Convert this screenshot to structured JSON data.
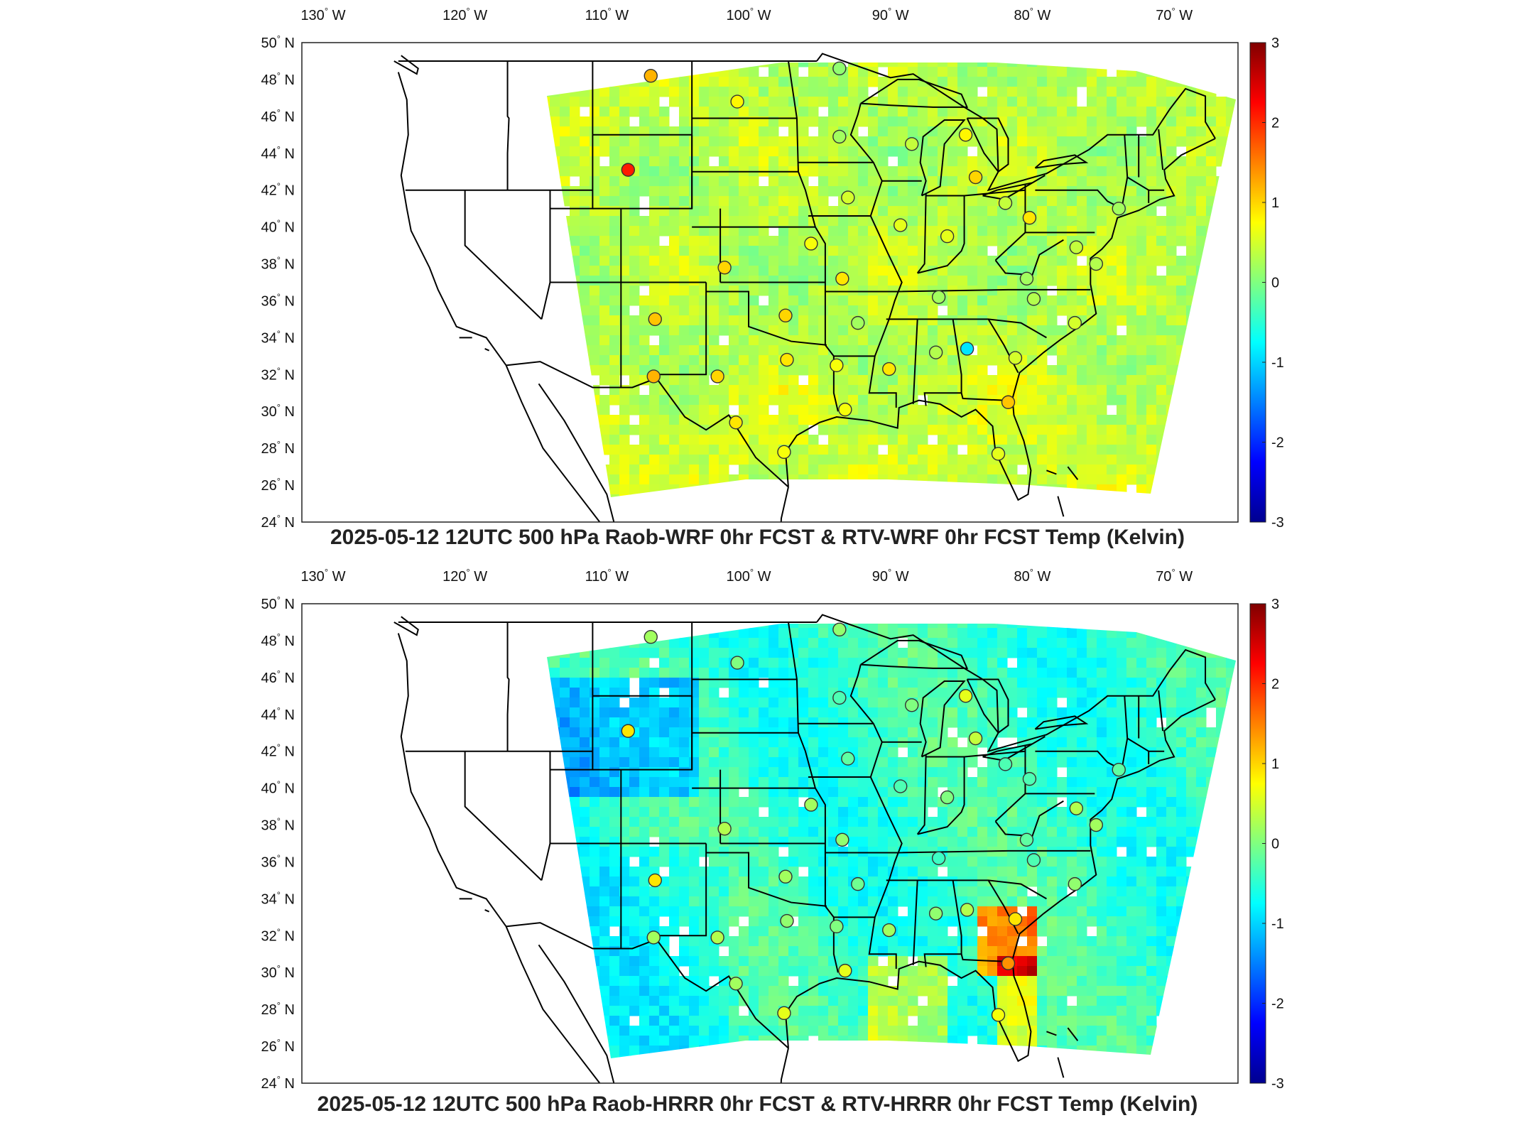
{
  "panels": [
    {
      "title": "2025-05-12 12UTC 500 hPa Raob-WRF 0hr FCST & RTV-WRF 0hr FCST Temp (Kelvin)",
      "stations": [
        {
          "lon": -106.9,
          "lat": 48.2,
          "v": 1.2
        },
        {
          "lon": -100.8,
          "lat": 46.8,
          "v": 0.8
        },
        {
          "lon": -93.6,
          "lat": 48.6,
          "v": 0.1
        },
        {
          "lon": -93.6,
          "lat": 44.9,
          "v": 0.2
        },
        {
          "lon": -84.7,
          "lat": 45.0,
          "v": 0.8
        },
        {
          "lon": -88.5,
          "lat": 44.5,
          "v": 0.4
        },
        {
          "lon": -108.5,
          "lat": 43.1,
          "v": 2.1
        },
        {
          "lon": -84.0,
          "lat": 42.7,
          "v": 1.0
        },
        {
          "lon": -93.0,
          "lat": 41.6,
          "v": 0.5
        },
        {
          "lon": -81.9,
          "lat": 41.3,
          "v": 0.4
        },
        {
          "lon": -73.9,
          "lat": 41.0,
          "v": 0.2
        },
        {
          "lon": -89.3,
          "lat": 40.1,
          "v": 0.6
        },
        {
          "lon": -80.2,
          "lat": 40.5,
          "v": 0.9
        },
        {
          "lon": -86.0,
          "lat": 39.5,
          "v": 0.6
        },
        {
          "lon": -95.6,
          "lat": 39.1,
          "v": 0.7
        },
        {
          "lon": -101.7,
          "lat": 37.8,
          "v": 1.0
        },
        {
          "lon": -76.9,
          "lat": 38.9,
          "v": 0.4
        },
        {
          "lon": -75.5,
          "lat": 38.0,
          "v": 0.3
        },
        {
          "lon": -93.4,
          "lat": 37.2,
          "v": 0.9
        },
        {
          "lon": -80.4,
          "lat": 37.2,
          "v": 0.2
        },
        {
          "lon": -86.6,
          "lat": 36.2,
          "v": 0.2
        },
        {
          "lon": -79.9,
          "lat": 36.1,
          "v": 0.3
        },
        {
          "lon": -106.6,
          "lat": 35.0,
          "v": 1.1
        },
        {
          "lon": -97.4,
          "lat": 35.2,
          "v": 1.0
        },
        {
          "lon": -92.3,
          "lat": 34.8,
          "v": 0.2
        },
        {
          "lon": -77.0,
          "lat": 34.8,
          "v": 0.5
        },
        {
          "lon": -84.6,
          "lat": 33.4,
          "v": -0.9
        },
        {
          "lon": -86.8,
          "lat": 33.2,
          "v": 0.3
        },
        {
          "lon": -97.3,
          "lat": 32.8,
          "v": 0.9
        },
        {
          "lon": -93.8,
          "lat": 32.5,
          "v": 0.7
        },
        {
          "lon": -90.1,
          "lat": 32.3,
          "v": 0.9
        },
        {
          "lon": -102.2,
          "lat": 31.9,
          "v": 1.0
        },
        {
          "lon": -106.7,
          "lat": 31.9,
          "v": 1.2
        },
        {
          "lon": -81.2,
          "lat": 32.9,
          "v": 0.5
        },
        {
          "lon": -93.2,
          "lat": 30.1,
          "v": 0.7
        },
        {
          "lon": -81.7,
          "lat": 30.5,
          "v": 1.1
        },
        {
          "lon": -100.9,
          "lat": 29.4,
          "v": 0.9
        },
        {
          "lon": -97.5,
          "lat": 27.8,
          "v": 0.7
        },
        {
          "lon": -82.4,
          "lat": 27.7,
          "v": 0.6
        }
      ]
    },
    {
      "title": "2025-05-12 12UTC 500 hPa Raob-HRRR 0hr FCST & RTV-HRRR 0hr FCST Temp (Kelvin)",
      "stations": [
        {
          "lon": -106.9,
          "lat": 48.2,
          "v": 0.2
        },
        {
          "lon": -100.8,
          "lat": 46.8,
          "v": 0.0
        },
        {
          "lon": -93.6,
          "lat": 48.6,
          "v": 0.1
        },
        {
          "lon": -93.6,
          "lat": 44.9,
          "v": -0.3
        },
        {
          "lon": -84.7,
          "lat": 45.0,
          "v": 0.6
        },
        {
          "lon": -88.5,
          "lat": 44.5,
          "v": 0.0
        },
        {
          "lon": -108.5,
          "lat": 43.1,
          "v": 0.9
        },
        {
          "lon": -84.0,
          "lat": 42.7,
          "v": 0.4
        },
        {
          "lon": -93.0,
          "lat": 41.6,
          "v": -0.2
        },
        {
          "lon": -81.9,
          "lat": 41.3,
          "v": -0.3
        },
        {
          "lon": -73.9,
          "lat": 41.0,
          "v": -0.2
        },
        {
          "lon": -89.3,
          "lat": 40.1,
          "v": -0.3
        },
        {
          "lon": -80.2,
          "lat": 40.5,
          "v": -0.3
        },
        {
          "lon": -86.0,
          "lat": 39.5,
          "v": 0.0
        },
        {
          "lon": -95.6,
          "lat": 39.1,
          "v": 0.2
        },
        {
          "lon": -101.7,
          "lat": 37.8,
          "v": 0.3
        },
        {
          "lon": -76.9,
          "lat": 38.9,
          "v": 0.3
        },
        {
          "lon": -75.5,
          "lat": 38.0,
          "v": 0.2
        },
        {
          "lon": -93.4,
          "lat": 37.2,
          "v": 0.1
        },
        {
          "lon": -80.4,
          "lat": 37.2,
          "v": -0.2
        },
        {
          "lon": -86.6,
          "lat": 36.2,
          "v": -0.4
        },
        {
          "lon": -79.9,
          "lat": 36.1,
          "v": -0.3
        },
        {
          "lon": -106.6,
          "lat": 35.0,
          "v": 0.9
        },
        {
          "lon": -97.4,
          "lat": 35.2,
          "v": 0.2
        },
        {
          "lon": -92.3,
          "lat": 34.8,
          "v": -0.1
        },
        {
          "lon": -77.0,
          "lat": 34.8,
          "v": 0.1
        },
        {
          "lon": -84.6,
          "lat": 33.4,
          "v": 0.3
        },
        {
          "lon": -86.8,
          "lat": 33.2,
          "v": 0.1
        },
        {
          "lon": -97.3,
          "lat": 32.8,
          "v": 0.1
        },
        {
          "lon": -93.8,
          "lat": 32.5,
          "v": 0.0
        },
        {
          "lon": -90.1,
          "lat": 32.3,
          "v": 0.2
        },
        {
          "lon": -102.2,
          "lat": 31.9,
          "v": 0.3
        },
        {
          "lon": -106.7,
          "lat": 31.9,
          "v": 0.2
        },
        {
          "lon": -81.2,
          "lat": 32.9,
          "v": 0.9
        },
        {
          "lon": -93.2,
          "lat": 30.1,
          "v": 0.6
        },
        {
          "lon": -81.7,
          "lat": 30.5,
          "v": 1.4
        },
        {
          "lon": -100.9,
          "lat": 29.4,
          "v": 0.2
        },
        {
          "lon": -97.5,
          "lat": 27.8,
          "v": 0.6
        },
        {
          "lon": -82.4,
          "lat": 27.7,
          "v": 0.7
        }
      ]
    }
  ],
  "lon_ticks": [
    {
      "value": -130,
      "num": "130",
      "unit": "W"
    },
    {
      "value": -120,
      "num": "120",
      "unit": "W"
    },
    {
      "value": -110,
      "num": "110",
      "unit": "W"
    },
    {
      "value": -100,
      "num": "100",
      "unit": "W"
    },
    {
      "value": -90,
      "num": "90",
      "unit": "W"
    },
    {
      "value": -80,
      "num": "80",
      "unit": "W"
    },
    {
      "value": -70,
      "num": "70",
      "unit": "W"
    }
  ],
  "lat_ticks": [
    {
      "value": 50,
      "num": "50",
      "unit": "N"
    },
    {
      "value": 48,
      "num": "48",
      "unit": "N"
    },
    {
      "value": 46,
      "num": "46",
      "unit": "N"
    },
    {
      "value": 44,
      "num": "44",
      "unit": "N"
    },
    {
      "value": 42,
      "num": "42",
      "unit": "N"
    },
    {
      "value": 40,
      "num": "40",
      "unit": "N"
    },
    {
      "value": 38,
      "num": "38",
      "unit": "N"
    },
    {
      "value": 36,
      "num": "36",
      "unit": "N"
    },
    {
      "value": 34,
      "num": "34",
      "unit": "N"
    },
    {
      "value": 32,
      "num": "32",
      "unit": "N"
    },
    {
      "value": 30,
      "num": "30",
      "unit": "N"
    },
    {
      "value": 28,
      "num": "28",
      "unit": "N"
    },
    {
      "value": 26,
      "num": "26",
      "unit": "N"
    },
    {
      "value": 24,
      "num": "24",
      "unit": "N"
    }
  ],
  "degree_symbol": "°",
  "colorbar": {
    "min": -3,
    "max": 3,
    "ticks": [
      "3",
      "2",
      "1",
      "0",
      "-1",
      "-2",
      "-3"
    ],
    "colors": [
      "#00008f",
      "#0000ff",
      "#0080ff",
      "#00ffff",
      "#80ff80",
      "#ffff00",
      "#ff8000",
      "#ff0000",
      "#800000"
    ]
  },
  "colors": {
    "land_border": "#000000",
    "missing": "#ffffff"
  }
}
